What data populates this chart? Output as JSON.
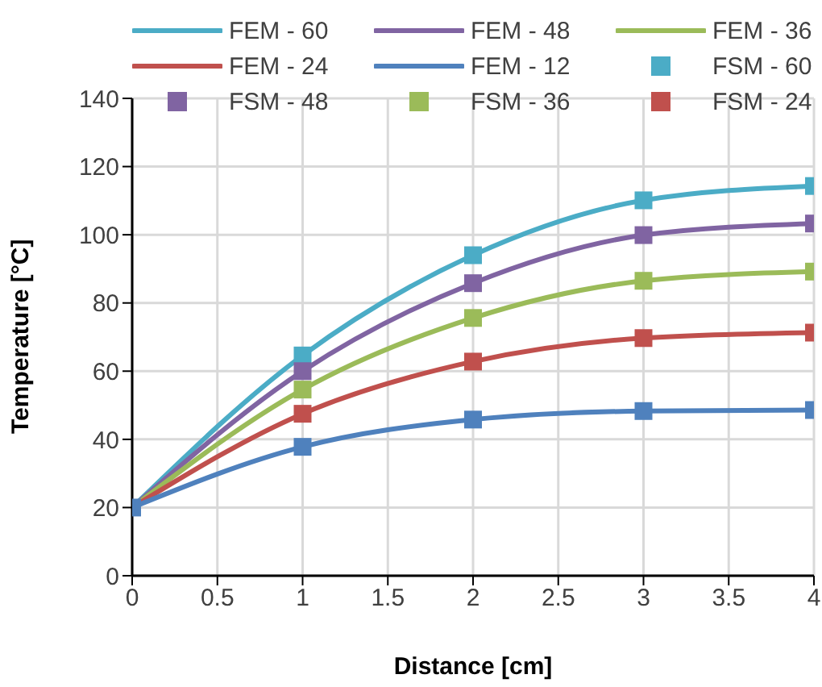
{
  "chart_data": {
    "type": "line",
    "xlabel": "Distance [cm]",
    "ylabel": "Temperature [°C]",
    "x": [
      0,
      1,
      2,
      3,
      4
    ],
    "series": [
      {
        "name": "FEM - 60",
        "color": "#4bacc6",
        "marker": "none",
        "values": [
          20,
          64.6,
          94,
          110.1,
          114.3
        ]
      },
      {
        "name": "FEM - 48",
        "color": "#8064a2",
        "marker": "none",
        "values": [
          20,
          60,
          85.8,
          99.9,
          103.3
        ]
      },
      {
        "name": "FEM - 36",
        "color": "#9bbb59",
        "marker": "none",
        "values": [
          20,
          54.6,
          75.6,
          86.5,
          89.2
        ]
      },
      {
        "name": "FEM - 24",
        "color": "#c0504d",
        "marker": "none",
        "values": [
          20,
          47.5,
          62.8,
          69.7,
          71.3
        ]
      },
      {
        "name": "FEM - 12",
        "color": "#4f81bd",
        "marker": "none",
        "values": [
          20,
          37.8,
          45.8,
          48.3,
          48.6
        ]
      },
      {
        "name": "FSM - 60",
        "type": "scatter",
        "color": "#4bacc6",
        "marker": "square",
        "values": [
          null,
          64.6,
          94,
          110.1,
          114.3
        ]
      },
      {
        "name": "FSM - 48",
        "type": "scatter",
        "color": "#8064a2",
        "marker": "square",
        "values": [
          null,
          60,
          85.8,
          99.9,
          103.3
        ]
      },
      {
        "name": "FSM - 36",
        "type": "scatter",
        "color": "#9bbb59",
        "marker": "square",
        "values": [
          null,
          54.6,
          75.6,
          86.5,
          89.2
        ]
      },
      {
        "name": "FSM - 24",
        "type": "scatter",
        "color": "#c0504d",
        "marker": "square",
        "values": [
          null,
          47.5,
          62.8,
          69.7,
          71.3
        ]
      },
      {
        "type": "scatter",
        "color": "#4f81bd",
        "marker": "square",
        "values": [
          20,
          37.8,
          45.8,
          48.3,
          48.6
        ]
      }
    ],
    "xlim": [
      0,
      4
    ],
    "xticks": [
      0,
      0.5,
      1,
      1.5,
      2,
      2.5,
      3,
      3.5,
      4
    ],
    "ylim": [
      0,
      140
    ],
    "yticks": [
      0,
      20,
      40,
      60,
      80,
      100,
      120,
      140
    ],
    "grid": true,
    "legend": "top",
    "line_style": "solid"
  }
}
